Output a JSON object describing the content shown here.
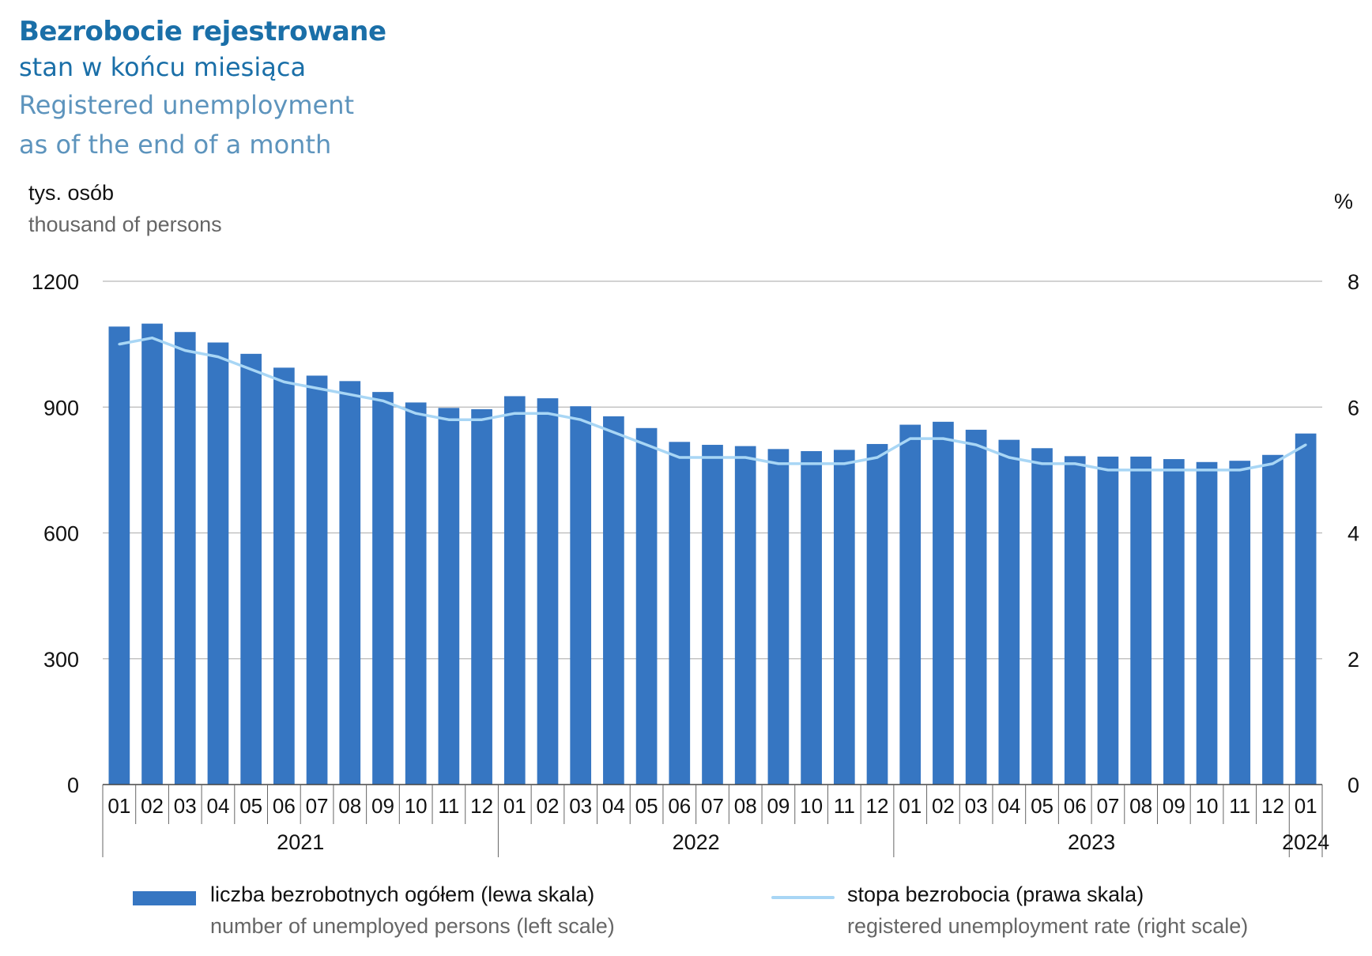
{
  "title": "Bezrobocie rejestrowane",
  "subtitle_pl": "stan w końcu miesiąca",
  "subtitle_en_1": "Registered unemployment",
  "subtitle_en_2": "as of the end of a month",
  "left_unit_pl": "tys. osób",
  "left_unit_en": "thousand of persons",
  "right_unit": "%",
  "legend": {
    "bars_pl": "liczba bezrobotnych ogółem (lewa skala)",
    "bars_en": "number of unemployed persons (left scale)",
    "line_pl": "stopa bezrobocia (prawa skala)",
    "line_en": "registered unemployment rate (right scale)"
  },
  "colors": {
    "bar": "#3676c2",
    "line": "#a8d6f5",
    "title": "#1a6fa8"
  },
  "chart_data": {
    "type": "bar",
    "categories": [
      "01",
      "02",
      "03",
      "04",
      "05",
      "06",
      "07",
      "08",
      "09",
      "10",
      "11",
      "12",
      "01",
      "02",
      "03",
      "04",
      "05",
      "06",
      "07",
      "08",
      "09",
      "10",
      "11",
      "12",
      "01",
      "02",
      "03",
      "04",
      "05",
      "06",
      "07",
      "08",
      "09",
      "10",
      "11",
      "12",
      "01"
    ],
    "years": [
      {
        "label": "2021",
        "start": 0,
        "end": 11
      },
      {
        "label": "2022",
        "start": 12,
        "end": 23
      },
      {
        "label": "2023",
        "start": 24,
        "end": 35
      },
      {
        "label": "2024",
        "start": 36,
        "end": 36
      }
    ],
    "series": [
      {
        "name": "liczba bezrobotnych ogółem (lewa skala)",
        "axis": "left",
        "type": "bar",
        "values": [
          1092,
          1099,
          1079,
          1054,
          1027,
          994,
          975,
          962,
          936,
          911,
          898,
          895,
          926,
          921,
          902,
          878,
          850,
          817,
          810,
          807,
          800,
          795,
          798,
          812,
          858,
          865,
          846,
          822,
          802,
          783,
          782,
          782,
          776,
          769,
          772,
          786,
          837
        ]
      },
      {
        "name": "stopa bezrobocia (prawa skala)",
        "axis": "right",
        "type": "line",
        "values": [
          7.0,
          7.1,
          6.9,
          6.8,
          6.6,
          6.4,
          6.3,
          6.2,
          6.1,
          5.9,
          5.8,
          5.8,
          5.9,
          5.9,
          5.8,
          5.6,
          5.4,
          5.2,
          5.2,
          5.2,
          5.1,
          5.1,
          5.1,
          5.2,
          5.5,
          5.5,
          5.4,
          5.2,
          5.1,
          5.1,
          5.0,
          5.0,
          5.0,
          5.0,
          5.0,
          5.1,
          5.4
        ]
      }
    ],
    "left_axis": {
      "ylim": [
        0,
        1200
      ],
      "ticks": [
        "0",
        "300",
        "600",
        "900",
        "1200"
      ]
    },
    "right_axis": {
      "ylim": [
        0,
        8
      ],
      "ticks": [
        "0",
        "2",
        "4",
        "6",
        "8"
      ]
    },
    "grid": true,
    "legend_position": "bottom"
  }
}
